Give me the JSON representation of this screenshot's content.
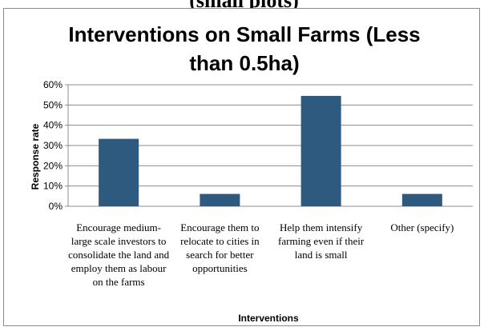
{
  "header_fragment": "(small plots)",
  "chart_data": {
    "type": "bar",
    "title": "Interventions on Small Farms (Less than 0.5ha)",
    "xlabel": "Interventions",
    "ylabel": "Response rate",
    "categories": [
      "Encourage medium-large scale investors to consolidate the land and employ them as labour on the farms",
      "Encourage them to relocate to cities in search for better opportunities",
      "Help them intensify farming even if their land is small",
      "Other (specify)"
    ],
    "values": [
      33.3,
      6.1,
      54.5,
      6.1
    ],
    "ylim": [
      0,
      60
    ],
    "yticks": [
      "0%",
      "10%",
      "20%",
      "30%",
      "40%",
      "50%",
      "60%"
    ],
    "grid": true,
    "legend": "none",
    "bar_color": "#2e5a80"
  }
}
